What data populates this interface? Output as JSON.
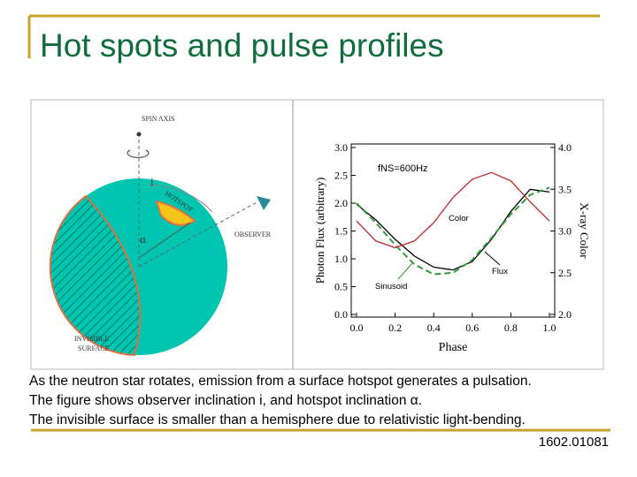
{
  "slide": {
    "title": "Hot spots and pulse profiles",
    "caption": [
      "As the neutron star rotates, emission from a surface hotspot generates a pulsation.",
      "The figure shows observer inclination i, and hotspot inclination α.",
      "The invisible surface is smaller than a hemisphere due to relativistic light-bending."
    ],
    "reference": "1602.01081"
  },
  "diagram": {
    "spin_axis": "SPIN AXIS",
    "inclination": "i",
    "hotspot": "HOTSPOT",
    "hotspot_angle": "α",
    "observer": "OBSERVER",
    "invisible_surface": [
      "INVISIBLE",
      "SURFACE"
    ]
  },
  "chart_data": {
    "type": "line",
    "x_label": "Phase",
    "y_label": "Photon Flux (arbitrary)",
    "y2_label": "X-ray Color",
    "annotations": [
      "fNS=600Hz",
      "Color",
      "Flux",
      "Sinusoid"
    ],
    "x": [
      0,
      0.1,
      0.2,
      0.3,
      0.4,
      0.5,
      0.6,
      0.7,
      0.8,
      0.9,
      1.0
    ],
    "series": [
      {
        "name": "Flux",
        "color": "#000000",
        "values": [
          1.98,
          1.7,
          1.35,
          1.05,
          0.85,
          0.8,
          0.95,
          1.35,
          1.85,
          2.25,
          2.2
        ]
      },
      {
        "name": "Sinusoid",
        "color": "#2e9e3a",
        "values": [
          2.0,
          1.65,
          1.25,
          0.9,
          0.72,
          0.75,
          0.98,
          1.38,
          1.8,
          2.15,
          2.28
        ]
      },
      {
        "name": "Color",
        "color": "#c0282c",
        "axis": "y2",
        "values": [
          3.12,
          2.88,
          2.8,
          2.88,
          3.1,
          3.4,
          3.62,
          3.7,
          3.6,
          3.35,
          3.12
        ]
      }
    ],
    "xlim": [
      0,
      1
    ],
    "xticks": [
      {
        "value": 0,
        "label": "0.0"
      },
      0.2,
      0.4,
      0.6,
      0.8,
      {
        "value": 1,
        "label": "1.0"
      }
    ],
    "ylim": [
      0,
      3
    ],
    "yticks": [
      {
        "value": 0,
        "label": "0.0"
      },
      0.5,
      {
        "value": 1,
        "label": "1.0"
      },
      1.5,
      {
        "value": 2,
        "label": "2.0"
      },
      2.5,
      {
        "value": 3,
        "label": "3.0"
      }
    ],
    "y2lim": [
      2,
      4
    ],
    "y2ticks": [
      {
        "value": 2,
        "label": "2.0"
      },
      2.5,
      {
        "value": 3,
        "label": "3.0"
      },
      3.5,
      {
        "value": 4,
        "label": "4.0"
      }
    ]
  }
}
